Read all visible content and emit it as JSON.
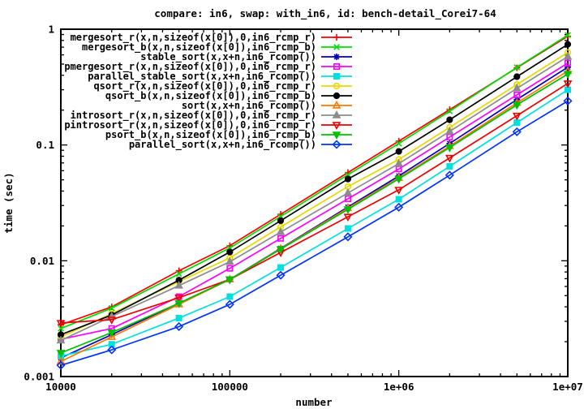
{
  "window": {
    "background": "#ffffff",
    "border_color": "#000000"
  },
  "chart_data": {
    "type": "line",
    "title": "compare: in6, swap: with_in6, id: bench-detail_Corei7-64",
    "xlabel": "number",
    "ylabel": "time (sec)",
    "log_x": true,
    "log_y": true,
    "grid": false,
    "legend_position": "top-left-inside",
    "xlim": [
      10000,
      10000000
    ],
    "ylim": [
      0.001,
      1
    ],
    "x_ticks": [
      {
        "value": 10000,
        "label": "10000"
      },
      {
        "value": 100000,
        "label": "100000"
      },
      {
        "value": 1000000,
        "label": "1e+06"
      },
      {
        "value": 10000000,
        "label": "1e+07"
      }
    ],
    "y_ticks": [
      {
        "value": 1,
        "label": "1"
      },
      {
        "value": 0.1,
        "label": "0.1"
      },
      {
        "value": 0.01,
        "label": "0.01"
      },
      {
        "value": 0.001,
        "label": "0.001"
      }
    ],
    "x": [
      10000,
      20000,
      50000,
      100000,
      200000,
      500000,
      1000000,
      2000000,
      5000000,
      10000000
    ],
    "series": [
      {
        "label": "mergesort_r(x,n,sizeof(x[0]),0,in6_rcmp_r)",
        "color": "#ff0000",
        "marker": "plus",
        "filled": false,
        "values": [
          0.0028,
          0.004,
          0.0082,
          0.0135,
          0.0252,
          0.0578,
          0.108,
          0.202,
          0.464,
          0.87
        ]
      },
      {
        "label": "mergesort_b(x,n,sizeof(x[0]),in6_rcmp_b)",
        "color": "#00dd00",
        "marker": "cross",
        "filled": false,
        "values": [
          0.0026,
          0.0039,
          0.0077,
          0.0129,
          0.0241,
          0.0553,
          0.103,
          0.196,
          0.468,
          0.89
        ]
      },
      {
        "label": "stable_sort(x,x+n,in6_rcomp())",
        "color": "#0000b8",
        "marker": "asterisk",
        "filled": false,
        "values": [
          0.00145,
          0.0023,
          0.0043,
          0.0069,
          0.0128,
          0.0291,
          0.054,
          0.103,
          0.247,
          0.47
        ]
      },
      {
        "label": "pmergesort_r(x,n,sizeof(x[0]),0,in6_rcmp_r)",
        "color": "#ff00ff",
        "marker": "square",
        "filled": false,
        "values": [
          0.0021,
          0.0026,
          0.0049,
          0.0086,
          0.0156,
          0.0343,
          0.062,
          0.117,
          0.271,
          0.51
        ]
      },
      {
        "label": "parallel_stable_sort(x,x+n,in6_rcomp())",
        "color": "#00e0e0",
        "marker": "square",
        "filled": true,
        "values": [
          0.0015,
          0.0019,
          0.0032,
          0.0049,
          0.00875,
          0.019,
          0.034,
          0.0654,
          0.156,
          0.3
        ]
      },
      {
        "label": "qsort_r(x,n,sizeof(x[0]),0,in6_rcmp_r)",
        "color": "#e8d800",
        "marker": "circle",
        "filled": false,
        "values": [
          0.0022,
          0.0035,
          0.0066,
          0.0106,
          0.0196,
          0.0437,
          0.075,
          0.142,
          0.333,
          0.63
        ]
      },
      {
        "label": "qsort_b(x,n,sizeof(x[0]),in6_rcmp_b)",
        "color": "#000000",
        "marker": "circle",
        "filled": true,
        "values": [
          0.0023,
          0.0034,
          0.0068,
          0.0119,
          0.0222,
          0.0508,
          0.088,
          0.165,
          0.389,
          0.74
        ]
      },
      {
        "label": "sort(x,x+n,in6_rcomp())",
        "color": "#ff7700",
        "marker": "triangle",
        "filled": false,
        "values": [
          0.00135,
          0.0022,
          0.0042,
          0.0069,
          0.0127,
          0.0285,
          0.052,
          0.0978,
          0.231,
          0.435
        ]
      },
      {
        "label": "introsort_r(x,n,sizeof(x[0]),0,in6_rcmp_r)",
        "color": "#8c8c8c",
        "marker": "triangle",
        "filled": true,
        "values": [
          0.00205,
          0.0033,
          0.0061,
          0.0098,
          0.0177,
          0.0385,
          0.069,
          0.131,
          0.308,
          0.58
        ]
      },
      {
        "label": "pintrosort_r(x,n,sizeof(x[0]),0,in6_rcmp_r)",
        "color": "#ee0000",
        "marker": "triangle-down",
        "filled": false,
        "values": [
          0.0029,
          0.0031,
          0.0048,
          0.0069,
          0.0118,
          0.024,
          0.041,
          0.0773,
          0.179,
          0.34
        ]
      },
      {
        "label": "psort_b(x,n,sizeof(x[0]),in6_rcmp_b)",
        "color": "#00c000",
        "marker": "triangle-down",
        "filled": true,
        "values": [
          0.0016,
          0.0024,
          0.0043,
          0.0069,
          0.0126,
          0.0278,
          0.051,
          0.0951,
          0.222,
          0.41
        ]
      },
      {
        "label": "parallel_sort(x,x+n,in6_rcomp())",
        "color": "#0033ff",
        "marker": "diamond",
        "filled": false,
        "values": [
          0.00125,
          0.0017,
          0.0027,
          0.0042,
          0.0075,
          0.0161,
          0.029,
          0.0549,
          0.13,
          0.24
        ]
      }
    ]
  }
}
